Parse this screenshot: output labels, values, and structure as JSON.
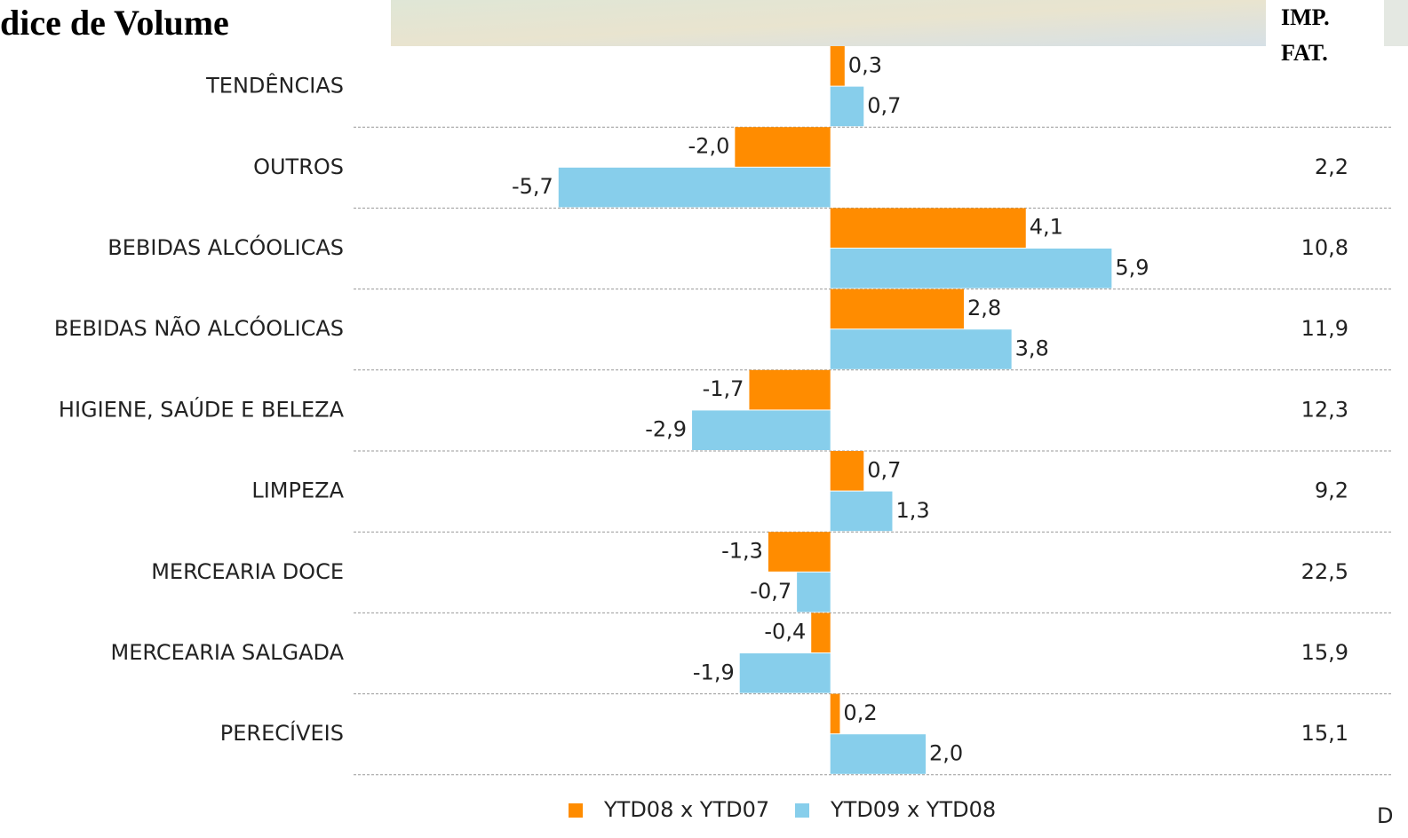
{
  "chart_data": {
    "type": "hbar",
    "title": "dice de Volume",
    "categories": [
      "TENDÊNCIAS",
      "OUTROS",
      "BEBIDAS ALCÓOLICAS",
      "BEBIDAS NÃO ALCÓOLICAS",
      "HIGIENE, SAÚDE E BELEZA",
      "LIMPEZA",
      "MERCEARIA DOCE",
      "MERCEARIA SALGADA",
      "PERECÍVEIS"
    ],
    "series": [
      {
        "name": "YTD08 x YTD07",
        "color": "#ff8c00",
        "values": [
          0.3,
          -2.0,
          4.1,
          2.8,
          -1.7,
          0.7,
          -1.3,
          -0.4,
          0.2
        ],
        "value_labels": [
          "0,3",
          "-2,0",
          "4,1",
          "2,8",
          "-1,7",
          "0,7",
          "-1,3",
          "-0,4",
          "0,2"
        ]
      },
      {
        "name": "YTD09 x YTD08",
        "color": "#87ceeb",
        "values": [
          0.7,
          -5.7,
          5.9,
          3.8,
          -2.9,
          1.3,
          -0.7,
          -1.9,
          2.0
        ],
        "value_labels": [
          "0,7",
          "-5,7",
          "5,9",
          "3,8",
          "-2,9",
          "1,3",
          "-0,7",
          "-1,9",
          "2,0"
        ]
      }
    ],
    "xlim": [
      -10,
      11.8
    ],
    "grid": true,
    "legend": "bottom",
    "side_column": {
      "header": [
        "IMP.",
        "FAT."
      ],
      "values": [
        null,
        "2,2",
        "10,8",
        "11,9",
        "12,3",
        "9,2",
        "22,5",
        "15,9",
        "15,1"
      ]
    },
    "annotation": "D"
  }
}
